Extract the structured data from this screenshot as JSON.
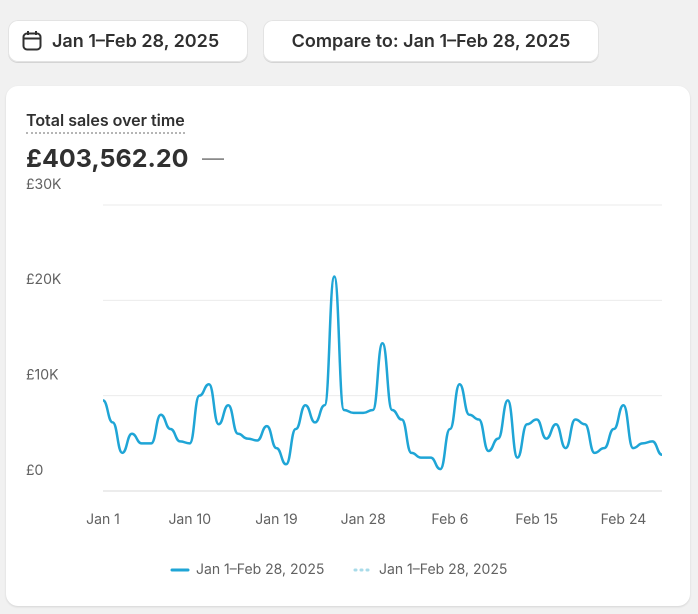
{
  "header": {
    "date_range": "Jan 1–Feb 28, 2025",
    "compare": "Compare to: Jan 1–Feb 28, 2025"
  },
  "card": {
    "title": "Total sales over time",
    "total": "£403,562.20",
    "change": "—"
  },
  "chart_data": {
    "type": "line",
    "categories": [
      "Jan 1",
      null,
      null,
      null,
      null,
      null,
      null,
      null,
      null,
      "Jan 10",
      null,
      null,
      null,
      null,
      null,
      null,
      null,
      null,
      "Jan 19",
      null,
      null,
      null,
      null,
      null,
      null,
      null,
      null,
      "Jan 28",
      null,
      null,
      null,
      null,
      null,
      null,
      null,
      null,
      "Feb 6",
      null,
      null,
      null,
      null,
      null,
      null,
      null,
      null,
      "Feb 15",
      null,
      null,
      null,
      null,
      null,
      null,
      null,
      null,
      "Feb 24",
      null,
      null,
      null,
      null
    ],
    "series": [
      {
        "name": "Jan 1–Feb 28, 2025",
        "color": "#1fa5d6",
        "style": "solid",
        "values": [
          9500,
          7200,
          4000,
          6000,
          5000,
          5000,
          8000,
          6500,
          5200,
          5000,
          10000,
          11200,
          7000,
          9000,
          6000,
          5500,
          5300,
          6800,
          4500,
          2800,
          6500,
          9000,
          7200,
          9000,
          22500,
          8500,
          8200,
          8200,
          8500,
          15500,
          8500,
          7500,
          4000,
          3500,
          3500,
          2300,
          6500,
          11200,
          8000,
          7500,
          4200,
          5500,
          9500,
          3500,
          7000,
          7500,
          5500,
          7000,
          4500,
          7500,
          7000,
          4000,
          4500,
          6500,
          9000,
          4500,
          5000,
          5200,
          3800
        ]
      },
      {
        "name": "Jan 1–Feb 28, 2025",
        "color": "#a8dbe9",
        "style": "dotted",
        "values": [
          9500,
          7200,
          4000,
          6000,
          5000,
          5000,
          8000,
          6500,
          5200,
          5000,
          10000,
          11200,
          7000,
          9000,
          6000,
          5500,
          5300,
          6800,
          4500,
          2800,
          6500,
          9000,
          7200,
          9000,
          22500,
          8500,
          8200,
          8200,
          8500,
          15500,
          8500,
          7500,
          4000,
          3500,
          3500,
          2300,
          6500,
          11200,
          8000,
          7500,
          4200,
          5500,
          9500,
          3500,
          7000,
          7500,
          5500,
          7000,
          4500,
          7500,
          7000,
          4000,
          4500,
          6500,
          9000,
          4500,
          5000,
          5200,
          3800
        ]
      }
    ],
    "ylim": [
      0,
      30000
    ],
    "yticks": [
      {
        "value": 0,
        "label": "£0"
      },
      {
        "value": 10000,
        "label": "£10K"
      },
      {
        "value": 20000,
        "label": "£20K"
      },
      {
        "value": 30000,
        "label": "£30K"
      }
    ],
    "grid": true
  }
}
